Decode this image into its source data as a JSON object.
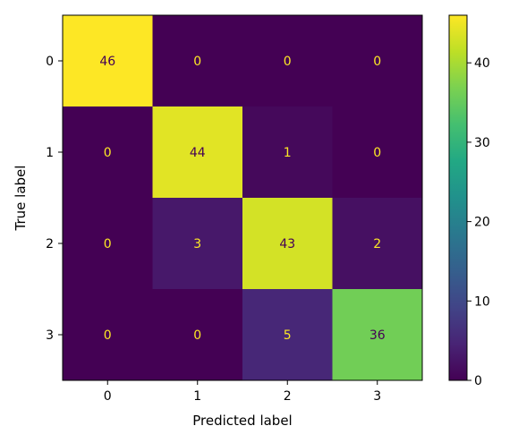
{
  "chart_data": {
    "type": "heatmap",
    "title": "",
    "xlabel": "Predicted label",
    "ylabel": "True label",
    "x_categories": [
      "0",
      "1",
      "2",
      "3"
    ],
    "y_categories": [
      "0",
      "1",
      "2",
      "3"
    ],
    "values": [
      [
        46,
        0,
        0,
        0
      ],
      [
        0,
        44,
        1,
        0
      ],
      [
        0,
        3,
        43,
        2
      ],
      [
        0,
        0,
        5,
        36
      ]
    ],
    "colormap": "viridis",
    "color_range": [
      0,
      46
    ],
    "colorbar_ticks": [
      "0",
      "10",
      "20",
      "30",
      "40"
    ],
    "colors": {
      "low": "#440154",
      "high": "#fde725"
    },
    "grid": false
  }
}
